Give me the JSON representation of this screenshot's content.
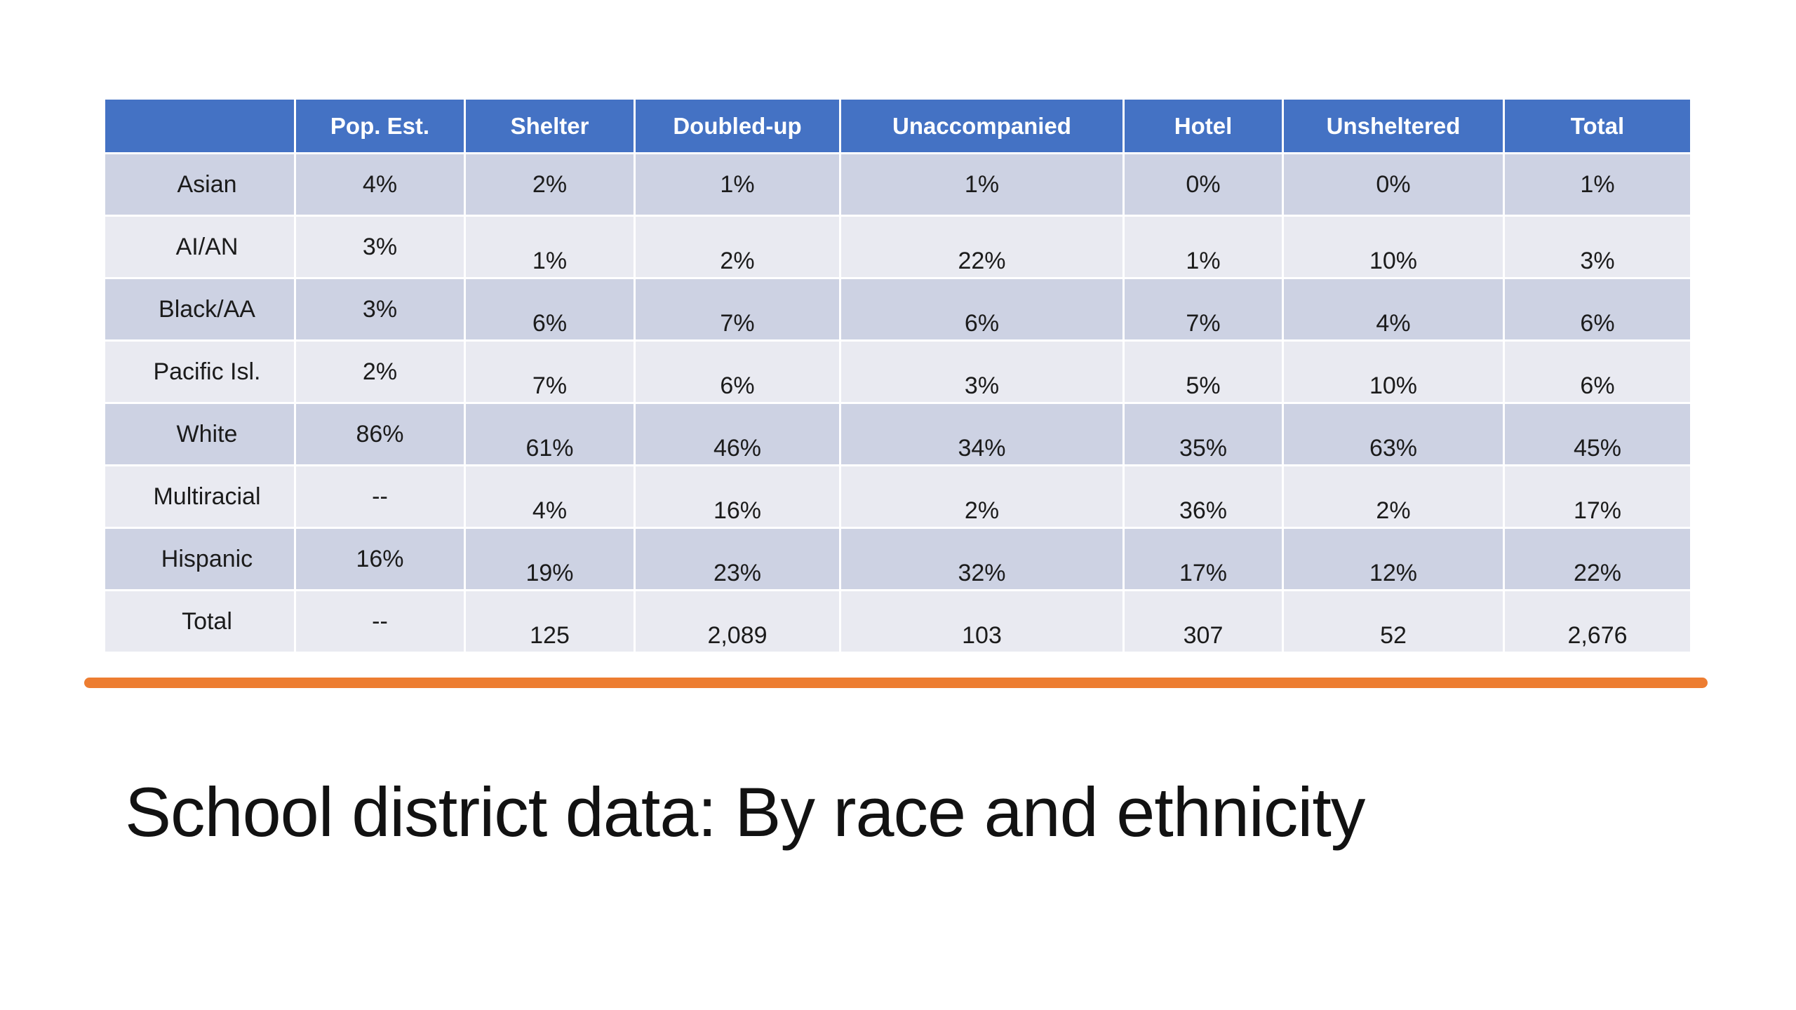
{
  "slide": {
    "title": "School district data: By race and ethnicity",
    "accent_line_color": "#ED7D31"
  },
  "table": {
    "header_bg": "#4472C4",
    "band_dark": "#CDD2E3",
    "band_light": "#E9EAF1",
    "columns": [
      "",
      "Pop. Est.",
      "Shelter",
      "Doubled-up",
      "Unaccompanied",
      "Hotel",
      "Unsheltered",
      "Total"
    ],
    "rows": [
      {
        "label": "Asian",
        "values": [
          "4%",
          "2%",
          "1%",
          "1%",
          "0%",
          "0%",
          "1%"
        ]
      },
      {
        "label": "AI/AN",
        "values": [
          "3%",
          "1%",
          "2%",
          "22%",
          "1%",
          "10%",
          "3%"
        ]
      },
      {
        "label": "Black/AA",
        "values": [
          "3%",
          "6%",
          "7%",
          "6%",
          "7%",
          "4%",
          "6%"
        ]
      },
      {
        "label": "Pacific Isl.",
        "values": [
          "2%",
          "7%",
          "6%",
          "3%",
          "5%",
          "10%",
          "6%"
        ]
      },
      {
        "label": "White",
        "values": [
          "86%",
          "61%",
          "46%",
          "34%",
          "35%",
          "63%",
          "45%"
        ]
      },
      {
        "label": "Multiracial",
        "values": [
          "--",
          "4%",
          "16%",
          "2%",
          "36%",
          "2%",
          "17%"
        ]
      },
      {
        "label": "Hispanic",
        "values": [
          "16%",
          "19%",
          "23%",
          "32%",
          "17%",
          "12%",
          "22%"
        ]
      },
      {
        "label": "Total",
        "values": [
          "--",
          "125",
          "2,089",
          "103",
          "307",
          "52",
          "2,676"
        ]
      }
    ]
  }
}
